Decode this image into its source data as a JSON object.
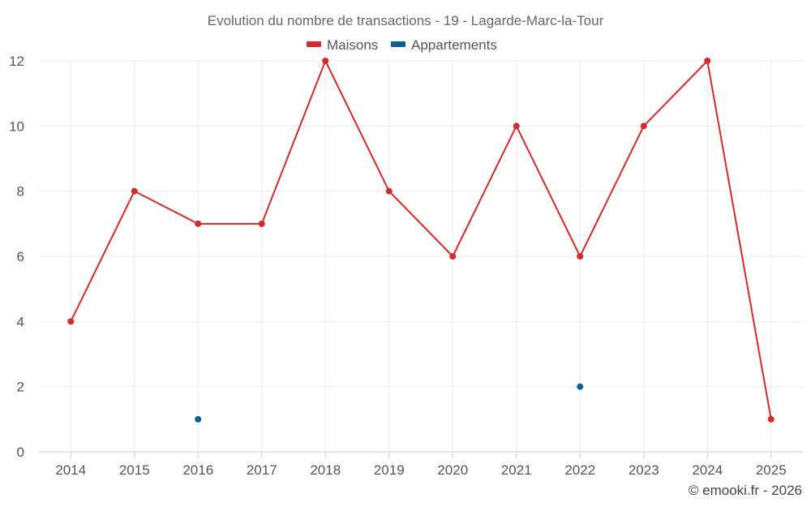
{
  "chart_data": {
    "type": "line",
    "title": "Evolution du nombre de transactions - 19 - Lagarde-Marc-la-Tour",
    "xlabel": "",
    "ylabel": "",
    "categories": [
      "2014",
      "2015",
      "2016",
      "2017",
      "2018",
      "2019",
      "2020",
      "2021",
      "2022",
      "2023",
      "2024",
      "2025"
    ],
    "ylim": [
      0,
      12
    ],
    "yticks": [
      "0",
      "2",
      "4",
      "6",
      "8",
      "10",
      "12"
    ],
    "grid": true,
    "legend_position": "top-center",
    "series": [
      {
        "name": "Maisons",
        "color": "#d42a2a",
        "values": [
          4,
          8,
          7,
          7,
          12,
          8,
          6,
          10,
          6,
          10,
          12,
          1
        ]
      },
      {
        "name": "Appartements",
        "color": "#0b5d9a",
        "values": [
          null,
          null,
          1,
          null,
          null,
          null,
          null,
          null,
          2,
          null,
          null,
          null
        ]
      }
    ]
  },
  "credit": "© emooki.fr - 2026"
}
